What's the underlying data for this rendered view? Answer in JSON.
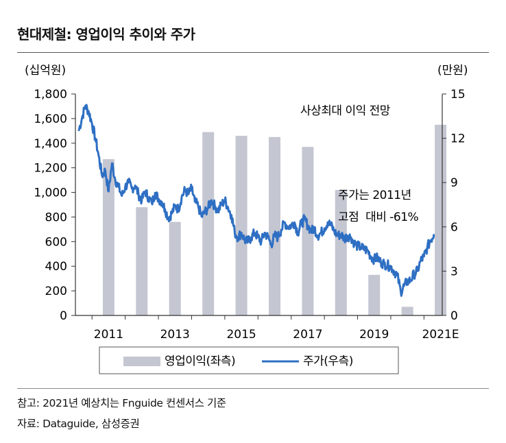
{
  "title": "현대제철: 영업이익 추이와 주가",
  "footnote": "참고: 2021년 예상치는 Fnguide 컨센서스 기준",
  "source": "자료: Dataguide, 삼성증권",
  "chart_data": {
    "type": "bar+line",
    "left_axis": {
      "unit": "(십억원)",
      "ticks": [
        0,
        200,
        400,
        600,
        800,
        1000,
        1200,
        1400,
        1600,
        1800
      ],
      "tick_labels": [
        "0",
        "200",
        "400",
        "600",
        "800",
        "1,000",
        "1,200",
        "1,400",
        "1,600",
        "1,800"
      ],
      "ylim": [
        0,
        1800
      ]
    },
    "right_axis": {
      "unit": "(만원)",
      "ticks": [
        0,
        3,
        6,
        9,
        12,
        15
      ],
      "tick_labels": [
        "0",
        "3",
        "6",
        "9",
        "12",
        "15"
      ],
      "ylim": [
        0,
        15
      ]
    },
    "x_labels": [
      "2011",
      "2013",
      "2015",
      "2017",
      "2019",
      "2021E"
    ],
    "bars": {
      "name": "영업이익(좌측)",
      "color": "#c4c6d1",
      "categories": [
        "2011",
        "2012",
        "2013",
        "2014",
        "2015",
        "2016",
        "2017",
        "2018",
        "2019",
        "2020",
        "2021E"
      ],
      "values": [
        1270,
        880,
        760,
        1490,
        1460,
        1450,
        1370,
        1020,
        330,
        70,
        1550
      ]
    },
    "line": {
      "name": "주가(우측)",
      "color": "#2e6fc3",
      "x": [
        2010.6,
        2010.7,
        2010.8,
        2010.9,
        2011.0,
        2011.1,
        2011.2,
        2011.3,
        2011.4,
        2011.5,
        2011.6,
        2011.7,
        2011.8,
        2011.9,
        2012.0,
        2012.1,
        2012.2,
        2012.3,
        2012.4,
        2012.5,
        2012.6,
        2012.7,
        2012.8,
        2012.9,
        2013.0,
        2013.1,
        2013.2,
        2013.3,
        2013.4,
        2013.5,
        2013.6,
        2013.7,
        2013.8,
        2013.9,
        2014.0,
        2014.1,
        2014.2,
        2014.3,
        2014.4,
        2014.5,
        2014.6,
        2014.7,
        2014.8,
        2014.9,
        2015.0,
        2015.1,
        2015.2,
        2015.3,
        2015.4,
        2015.5,
        2015.6,
        2015.7,
        2015.8,
        2015.9,
        2016.0,
        2016.1,
        2016.2,
        2016.3,
        2016.4,
        2016.5,
        2016.6,
        2016.7,
        2016.8,
        2016.9,
        2017.0,
        2017.1,
        2017.2,
        2017.3,
        2017.4,
        2017.5,
        2017.6,
        2017.7,
        2017.8,
        2017.9,
        2018.0,
        2018.1,
        2018.2,
        2018.3,
        2018.4,
        2018.5,
        2018.6,
        2018.7,
        2018.8,
        2018.9,
        2019.0,
        2019.1,
        2019.2,
        2019.3,
        2019.4,
        2019.5,
        2019.6,
        2019.7,
        2019.8,
        2019.9,
        2020.0,
        2020.1,
        2020.2,
        2020.3,
        2020.4,
        2020.5,
        2020.6,
        2020.7,
        2020.8,
        2020.9,
        2021.0,
        2021.1,
        2021.2,
        2021.3
      ],
      "values": [
        12.5,
        13.4,
        14.2,
        13.8,
        13.0,
        12.0,
        10.8,
        9.5,
        9.8,
        8.4,
        10.3,
        9.2,
        8.7,
        8.1,
        8.7,
        9.0,
        8.6,
        8.8,
        8.2,
        7.8,
        8.4,
        8.0,
        7.6,
        8.3,
        7.9,
        7.7,
        7.2,
        6.6,
        6.9,
        7.4,
        7.2,
        8.0,
        8.5,
        8.2,
        8.6,
        7.7,
        7.4,
        6.7,
        7.0,
        7.3,
        7.8,
        7.4,
        7.1,
        7.5,
        7.8,
        7.3,
        6.8,
        5.6,
        5.3,
        5.6,
        5.1,
        5.0,
        5.3,
        5.6,
        5.3,
        5.0,
        5.6,
        5.3,
        4.8,
        5.4,
        5.3,
        5.8,
        6.3,
        6.0,
        6.1,
        6.3,
        5.6,
        6.2,
        6.5,
        6.1,
        5.7,
        5.9,
        5.4,
        5.6,
        5.9,
        6.3,
        6.1,
        5.7,
        5.4,
        5.5,
        5.2,
        5.4,
        5.3,
        4.9,
        4.7,
        4.6,
        4.5,
        4.4,
        4.0,
        3.8,
        3.9,
        3.6,
        3.5,
        3.4,
        3.3,
        3.0,
        2.7,
        1.6,
        2.0,
        2.3,
        2.4,
        2.8,
        3.0,
        3.7,
        4.0,
        4.6,
        5.1,
        5.5
      ]
    },
    "annotations": [
      "사상최대 이익 전망",
      "주가는 2011년",
      "고점  대비 -61%"
    ],
    "legend": {
      "position": "bottom",
      "items": [
        "영업이익(좌측)",
        "주가(우측)"
      ]
    }
  }
}
